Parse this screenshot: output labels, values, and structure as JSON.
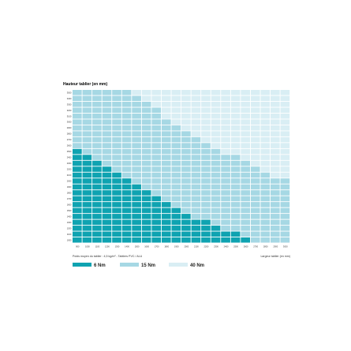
{
  "chart_data": {
    "type": "heatmap",
    "ylabel": "Hauteur tablier (en mm)",
    "xlabel": "Largeur tablier (en mm)",
    "note": "Poids moyen du tablier : 4,5 kg/m² - Tabliers PVC / ALU",
    "x": [
      900,
      1000,
      1100,
      1200,
      1300,
      1400,
      1500,
      1600,
      1700,
      1800,
      1900,
      2000,
      2100,
      2200,
      2300,
      2400,
      2500,
      2600,
      2700,
      2800,
      2900,
      3000
    ],
    "y": [
      3500,
      3400,
      3300,
      3200,
      3100,
      3000,
      2900,
      2800,
      2700,
      2600,
      2500,
      2400,
      2300,
      2200,
      2100,
      2000,
      1900,
      1800,
      1700,
      1600,
      1500,
      1400,
      1300,
      1200,
      1100,
      1000
    ],
    "classes": [
      "6 Nm",
      "15 Nm",
      "40 Nm"
    ],
    "limit_6nm_max_height": [
      2500,
      2400,
      2300,
      2200,
      2100,
      2000,
      1900,
      1800,
      1700,
      1600,
      1500,
      1400,
      1300,
      1300,
      1200,
      1100,
      1100,
      1000,
      0,
      0,
      0,
      0
    ],
    "limit_15nm_max_height": [
      3500,
      3500,
      3500,
      3500,
      3500,
      3500,
      3400,
      3300,
      3200,
      3000,
      2900,
      2800,
      2700,
      2600,
      2500,
      2400,
      2400,
      2300,
      2200,
      2100,
      2000,
      2000
    ],
    "legend": [
      {
        "label": "6 Nm",
        "color": "#0fa3b1"
      },
      {
        "label": "15 Nm",
        "color": "#a6d8e4"
      },
      {
        "label": "40 Nm",
        "color": "#d9eef4"
      }
    ],
    "legend_placement": "bottom-left"
  }
}
